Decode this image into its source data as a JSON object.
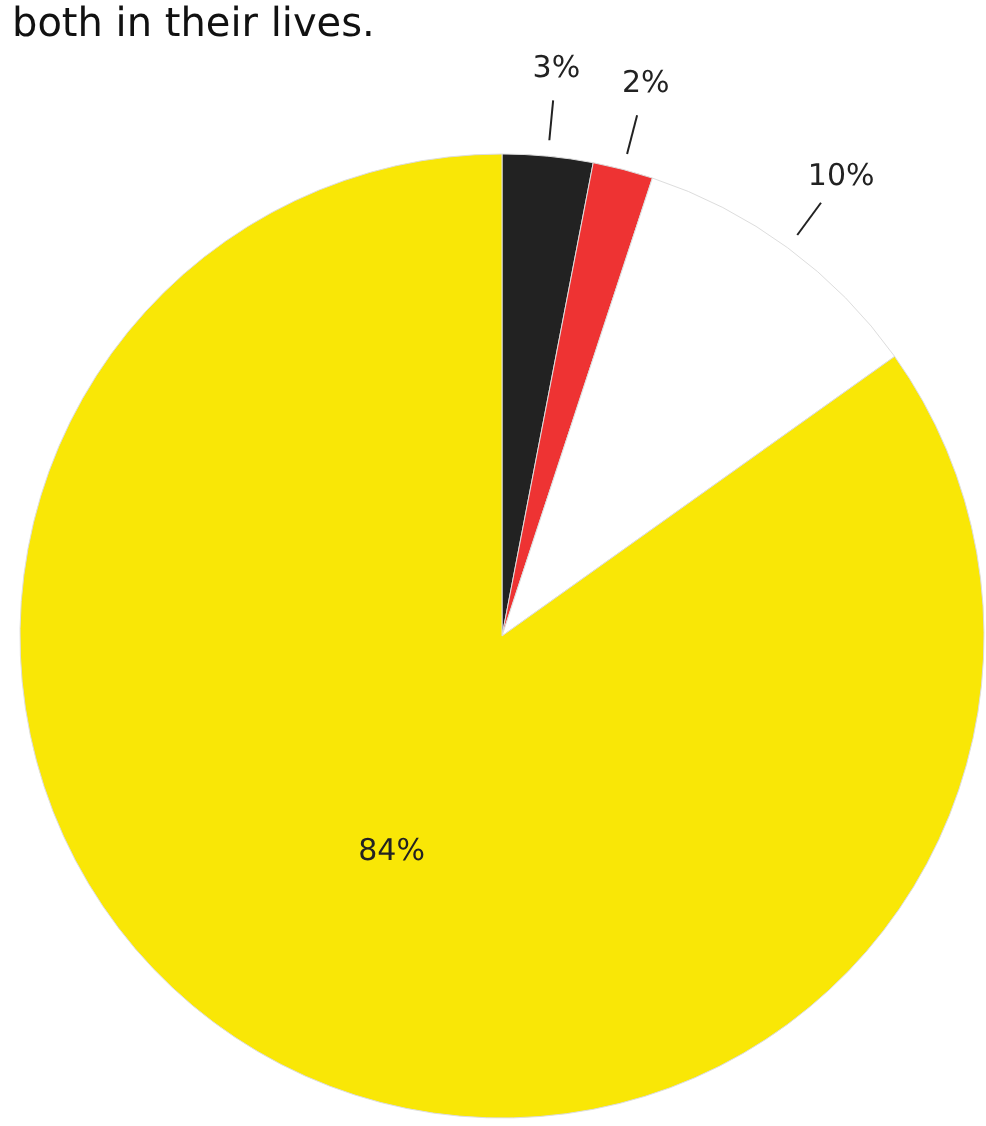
{
  "chart_data": {
    "type": "pie",
    "title": "both in their lives.",
    "categories": [
      null,
      null,
      null,
      null
    ],
    "values": [
      3,
      2,
      10,
      84
    ],
    "colors": [
      "#222222",
      "#ee3333",
      "#ffffff",
      "#f9e706"
    ],
    "value_labels": [
      "3%",
      "2%",
      "10%",
      "84%"
    ]
  }
}
